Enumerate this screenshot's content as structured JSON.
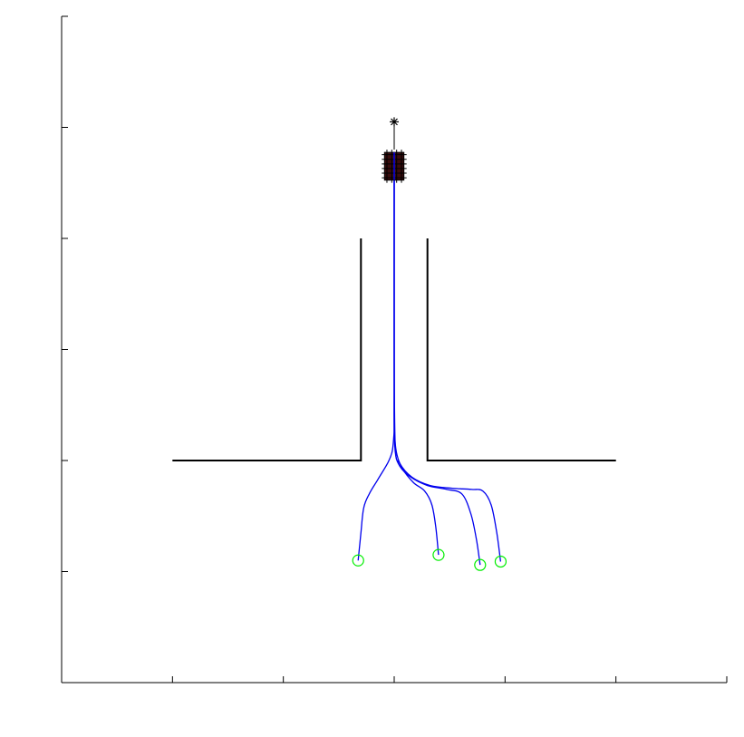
{
  "chart_data": {
    "type": "line",
    "title": "",
    "xlabel": "",
    "ylabel": "",
    "xlim": [
      -6,
      6
    ],
    "ylim": [
      -6,
      6
    ],
    "x_ticks": [
      -6,
      -4,
      -2,
      0,
      2,
      4,
      6
    ],
    "y_ticks": [
      -6,
      -4,
      -2,
      0,
      2,
      4,
      6
    ],
    "tick_labels_shown": false,
    "grid": false,
    "legend": "none",
    "colors": {
      "axes": "#000000",
      "walls": "#000000",
      "trajectory": "#0000ee",
      "start_marker": "#00ee00",
      "goal_marker": "#000000",
      "cluster": "#3a0d0d"
    },
    "walls": [
      {
        "x": [
          -4,
          -0.6,
          -0.6
        ],
        "y": [
          -2,
          -2,
          2
        ]
      },
      {
        "x": [
          0.6,
          0.6,
          4
        ],
        "y": [
          2,
          -2,
          -2
        ]
      }
    ],
    "goal": {
      "x": 0,
      "y": 4.1,
      "marker": "asterisk"
    },
    "goal_stem": {
      "x": [
        0,
        0
      ],
      "y": [
        3.6,
        4.1
      ]
    },
    "cluster": {
      "x": 0,
      "y": 3.3,
      "width": 0.35,
      "height": 0.5
    },
    "trajectories": [
      {
        "start": [
          -0.65,
          -3.8
        ],
        "x": [
          -0.65,
          -0.6,
          -0.55,
          -0.45,
          -0.3,
          -0.12,
          -0.04,
          -0.01,
          0,
          0,
          0,
          0
        ],
        "y": [
          -3.8,
          -3.3,
          -2.85,
          -2.6,
          -2.35,
          -2.05,
          -1.85,
          -1.6,
          -1.3,
          0,
          2,
          3.35
        ]
      },
      {
        "start": [
          0.8,
          -3.7
        ],
        "x": [
          0.8,
          0.75,
          0.68,
          0.55,
          0.35,
          0.15,
          0.05,
          0.01,
          0,
          0,
          0
        ],
        "y": [
          -3.7,
          -3.2,
          -2.8,
          -2.55,
          -2.4,
          -2.15,
          -1.9,
          -1.6,
          -1.3,
          0,
          3.35
        ]
      },
      {
        "start": [
          1.55,
          -3.88
        ],
        "x": [
          1.55,
          1.48,
          1.38,
          1.22,
          0.95,
          0.6,
          0.3,
          0.1,
          0.02,
          0,
          0,
          0
        ],
        "y": [
          -3.88,
          -3.4,
          -2.95,
          -2.6,
          -2.52,
          -2.45,
          -2.3,
          -2.1,
          -1.85,
          -1.3,
          0,
          3.35
        ]
      },
      {
        "start": [
          1.92,
          -3.82
        ],
        "x": [
          1.92,
          1.85,
          1.75,
          1.6,
          1.4,
          1.05,
          0.65,
          0.32,
          0.1,
          0.02,
          0,
          0
        ],
        "y": [
          -3.82,
          -3.3,
          -2.8,
          -2.55,
          -2.52,
          -2.5,
          -2.45,
          -2.3,
          -2.05,
          -1.75,
          0,
          3.35
        ]
      }
    ]
  }
}
